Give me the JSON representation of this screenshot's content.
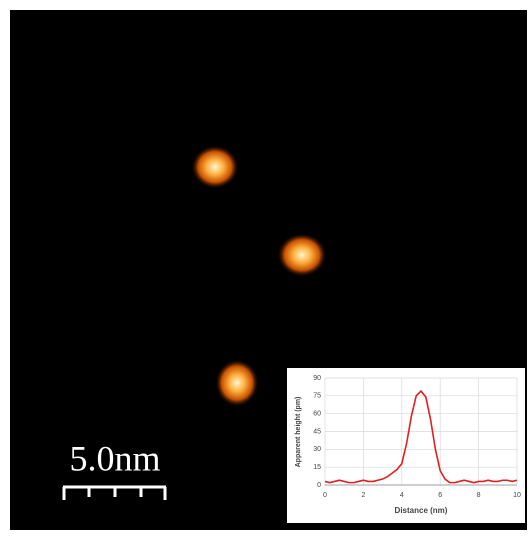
{
  "scale_bar": {
    "label": "5.0nm"
  },
  "chart_data": {
    "type": "line",
    "xlabel": "Distance (nm)",
    "ylabel": "Apparent height (pm)",
    "x": [
      0,
      0.25,
      0.5,
      0.75,
      1,
      1.25,
      1.5,
      1.75,
      2,
      2.25,
      2.5,
      2.75,
      3,
      3.25,
      3.5,
      3.75,
      4,
      4.25,
      4.5,
      4.75,
      5,
      5.25,
      5.5,
      5.75,
      6,
      6.25,
      6.5,
      6.75,
      7,
      7.25,
      7.5,
      7.75,
      8,
      8.25,
      8.5,
      8.75,
      9,
      9.25,
      9.5,
      9.75,
      10
    ],
    "values": [
      3,
      2,
      3,
      4,
      3,
      2,
      2,
      3,
      4,
      3,
      3,
      4,
      5,
      7,
      10,
      13,
      18,
      35,
      58,
      75,
      79,
      74,
      55,
      30,
      12,
      5,
      2,
      2,
      3,
      4,
      3,
      2,
      3,
      3,
      4,
      3,
      3,
      4,
      4,
      3,
      4
    ],
    "color": "#e02020",
    "xlim": [
      0,
      10
    ],
    "ylim": [
      0,
      90
    ],
    "xticks": [
      0,
      2,
      4,
      6,
      8,
      10
    ],
    "yticks": [
      0,
      15,
      30,
      45,
      60,
      75,
      90
    ],
    "grid": true
  }
}
